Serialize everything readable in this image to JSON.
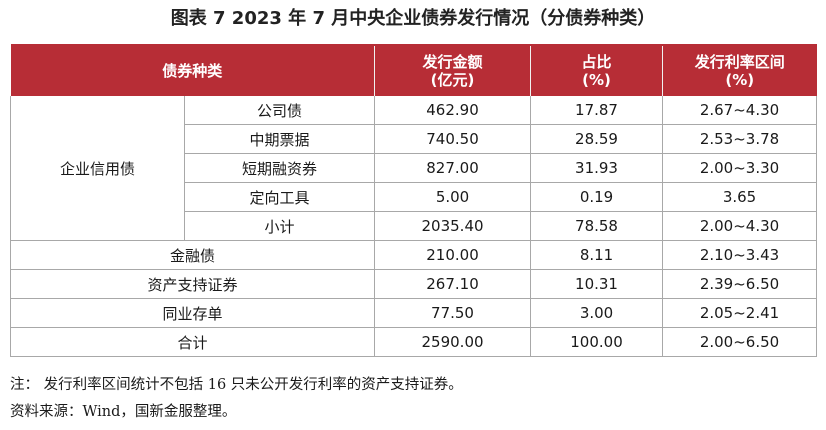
{
  "title": "图表 7  2023 年 7 月中央企业债券发行情况（分债券种类）",
  "headers": {
    "type": "债券种类",
    "amount_line1": "发行金额",
    "amount_line2": "(亿元)",
    "share_line1": "占比",
    "share_line2": "(%)",
    "rate_line1": "发行利率区间",
    "rate_line2": "(%)"
  },
  "group": {
    "label": "企业信用债",
    "rows": [
      {
        "type": "公司债",
        "amount": "462.90",
        "share": "17.87",
        "rate": "2.67~4.30"
      },
      {
        "type": "中期票据",
        "amount": "740.50",
        "share": "28.59",
        "rate": "2.53~3.78"
      },
      {
        "type": "短期融资券",
        "amount": "827.00",
        "share": "31.93",
        "rate": "2.00~3.30"
      },
      {
        "type": "定向工具",
        "amount": "5.00",
        "share": "0.19",
        "rate": "3.65"
      },
      {
        "type": "小计",
        "amount": "2035.40",
        "share": "78.58",
        "rate": "2.00~4.30"
      }
    ]
  },
  "rows": [
    {
      "type": "金融债",
      "amount": "210.00",
      "share": "8.11",
      "rate": "2.10~3.43"
    },
    {
      "type": "资产支持证券",
      "amount": "267.10",
      "share": "10.31",
      "rate": "2.39~6.50"
    },
    {
      "type": "同业存单",
      "amount": "77.50",
      "share": "3.00",
      "rate": "2.05~2.41"
    },
    {
      "type": "合计",
      "amount": "2590.00",
      "share": "100.00",
      "rate": "2.00~6.50"
    }
  ],
  "notes": {
    "note": "注：  发行利率区间统计不包括 16 只未公开发行利率的资产支持证券。",
    "source": "资料来源：Wind，国新金服整理。"
  },
  "colors": {
    "header_bg": "#b72d36",
    "header_text": "#ffffff",
    "grid": "#a8a8a8"
  }
}
